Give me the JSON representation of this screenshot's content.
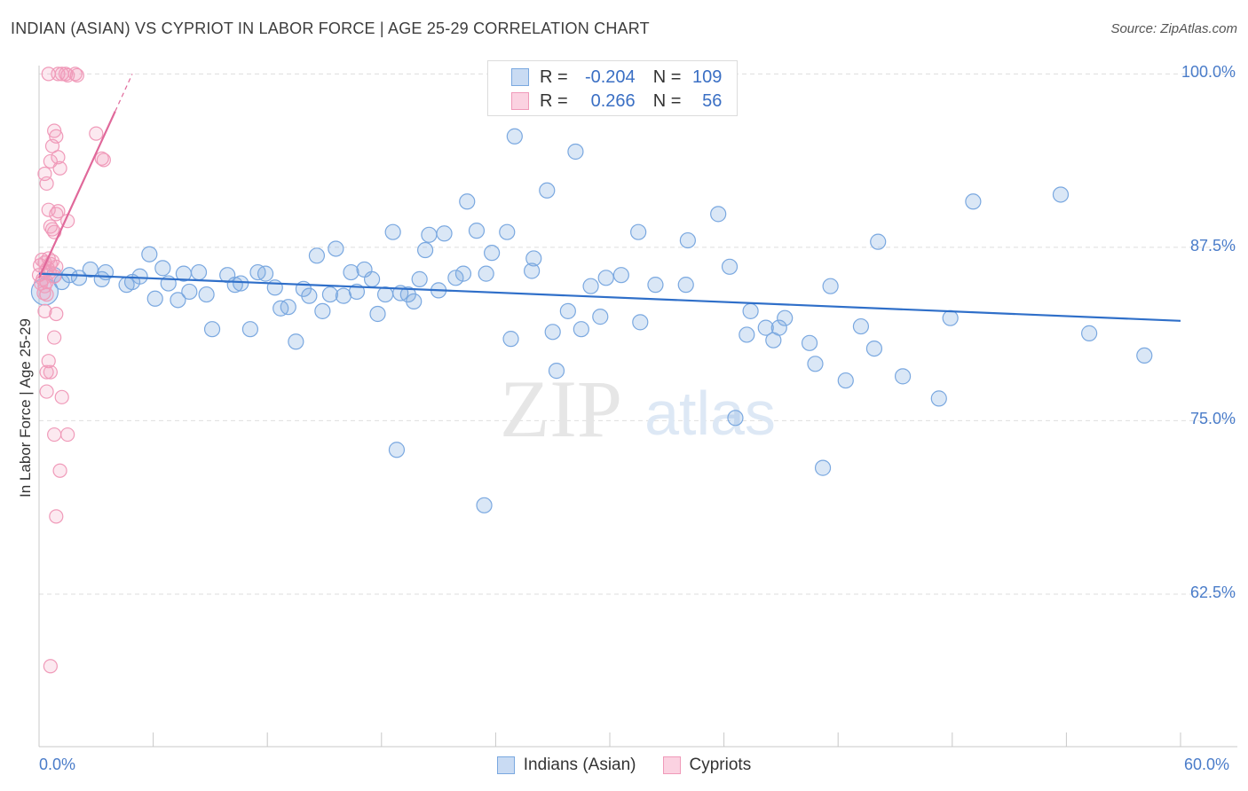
{
  "chart_data": {
    "type": "scatter",
    "title": "INDIAN (ASIAN) VS CYPRIOT IN LABOR FORCE | AGE 25-29 CORRELATION CHART",
    "source": "Source: ZipAtlas.com",
    "ylabel": "In Labor Force | Age 25-29",
    "xlabel": "",
    "xlim": [
      0,
      60
    ],
    "ylim": [
      51.5,
      100.6
    ],
    "x_tick_labels": [
      "0.0%",
      "60.0%"
    ],
    "y_ticks": [
      {
        "value": 100.0,
        "label": "100.0%"
      },
      {
        "value": 87.5,
        "label": "87.5%"
      },
      {
        "value": 75.0,
        "label": "75.0%"
      },
      {
        "value": 62.5,
        "label": "62.5%"
      }
    ],
    "watermark": {
      "zip": "ZIP",
      "atlas": "atlas"
    },
    "legend": [
      {
        "r_label": "R =",
        "r": "-0.204",
        "n_label": "N =",
        "n": "109",
        "color": "#7aa8e0"
      },
      {
        "r_label": "R =",
        "r": "0.266",
        "n_label": "N =",
        "n": "56",
        "color": "#f09ab9"
      }
    ],
    "series": [
      {
        "name": "Indians (Asian)",
        "color": "#7aa8e0",
        "trend": {
          "x": [
            0,
            60
          ],
          "y": [
            85.6,
            82.2
          ],
          "color": "#2f6fc9"
        },
        "points": [
          [
            0.3,
            84.3
          ],
          [
            0.8,
            85.5
          ],
          [
            1.2,
            85.0
          ],
          [
            1.6,
            85.5
          ],
          [
            2.1,
            85.3
          ],
          [
            2.7,
            85.9
          ],
          [
            3.3,
            85.2
          ],
          [
            3.5,
            85.7
          ],
          [
            4.6,
            84.8
          ],
          [
            4.9,
            85.0
          ],
          [
            5.3,
            85.4
          ],
          [
            5.8,
            87.0
          ],
          [
            6.1,
            83.8
          ],
          [
            6.5,
            86.0
          ],
          [
            6.8,
            84.9
          ],
          [
            7.3,
            83.7
          ],
          [
            7.6,
            85.6
          ],
          [
            7.9,
            84.3
          ],
          [
            8.4,
            85.7
          ],
          [
            8.8,
            84.1
          ],
          [
            9.1,
            81.6
          ],
          [
            9.9,
            85.5
          ],
          [
            10.3,
            84.8
          ],
          [
            10.6,
            84.9
          ],
          [
            11.1,
            81.6
          ],
          [
            11.5,
            85.7
          ],
          [
            11.9,
            85.6
          ],
          [
            12.4,
            84.6
          ],
          [
            12.7,
            83.1
          ],
          [
            13.1,
            83.2
          ],
          [
            13.5,
            80.7
          ],
          [
            13.9,
            84.5
          ],
          [
            14.2,
            84.0
          ],
          [
            14.6,
            86.9
          ],
          [
            14.9,
            82.9
          ],
          [
            15.3,
            84.1
          ],
          [
            15.6,
            87.4
          ],
          [
            16.0,
            84.0
          ],
          [
            16.4,
            85.7
          ],
          [
            16.7,
            84.3
          ],
          [
            17.1,
            85.9
          ],
          [
            17.5,
            85.2
          ],
          [
            17.8,
            82.7
          ],
          [
            18.2,
            84.1
          ],
          [
            18.6,
            88.6
          ],
          [
            19.0,
            84.2
          ],
          [
            19.4,
            84.1
          ],
          [
            19.7,
            83.6
          ],
          [
            20.0,
            85.2
          ],
          [
            20.3,
            87.3
          ],
          [
            20.5,
            88.4
          ],
          [
            21.0,
            84.4
          ],
          [
            21.3,
            88.5
          ],
          [
            21.9,
            85.3
          ],
          [
            22.3,
            85.6
          ],
          [
            22.5,
            90.8
          ],
          [
            23.0,
            88.7
          ],
          [
            23.5,
            85.6
          ],
          [
            23.8,
            87.1
          ],
          [
            24.6,
            88.6
          ],
          [
            24.8,
            80.9
          ],
          [
            25.0,
            95.5
          ],
          [
            25.9,
            85.8
          ],
          [
            26.0,
            86.7
          ],
          [
            26.7,
            91.6
          ],
          [
            27.0,
            81.4
          ],
          [
            27.2,
            78.6
          ],
          [
            27.8,
            82.9
          ],
          [
            28.2,
            94.4
          ],
          [
            28.5,
            81.6
          ],
          [
            29.0,
            84.7
          ],
          [
            29.5,
            82.5
          ],
          [
            29.8,
            85.3
          ],
          [
            30.6,
            85.5
          ],
          [
            31.5,
            88.6
          ],
          [
            31.6,
            82.1
          ],
          [
            32.4,
            84.8
          ],
          [
            34.0,
            84.8
          ],
          [
            34.1,
            88.0
          ],
          [
            35.7,
            89.9
          ],
          [
            36.3,
            86.1
          ],
          [
            36.6,
            75.2
          ],
          [
            37.2,
            81.2
          ],
          [
            37.4,
            82.9
          ],
          [
            38.2,
            81.7
          ],
          [
            38.6,
            80.8
          ],
          [
            38.9,
            81.7
          ],
          [
            39.2,
            82.4
          ],
          [
            40.5,
            80.6
          ],
          [
            40.8,
            79.1
          ],
          [
            41.2,
            71.6
          ],
          [
            41.6,
            84.7
          ],
          [
            42.4,
            77.9
          ],
          [
            43.2,
            81.8
          ],
          [
            43.9,
            80.2
          ],
          [
            44.1,
            87.9
          ],
          [
            45.4,
            78.2
          ],
          [
            47.3,
            76.6
          ],
          [
            47.9,
            82.4
          ],
          [
            49.1,
            90.8
          ],
          [
            53.7,
            91.3
          ],
          [
            55.2,
            81.3
          ],
          [
            58.1,
            79.7
          ],
          [
            18.8,
            72.9
          ],
          [
            23.4,
            68.9
          ]
        ]
      },
      {
        "name": "Cypriots",
        "color": "#f09ab9",
        "trend": {
          "x": [
            0,
            4.0
          ],
          "y": [
            85.3,
            97.3
          ],
          "color": "#e0689a"
        },
        "points": [
          [
            0.0,
            85.5
          ],
          [
            0.05,
            86.2
          ],
          [
            0.1,
            84.9
          ],
          [
            0.15,
            86.6
          ],
          [
            0.2,
            85.2
          ],
          [
            0.25,
            84.2
          ],
          [
            0.3,
            86.4
          ],
          [
            0.35,
            85.8
          ],
          [
            0.4,
            85.0
          ],
          [
            0.45,
            86.0
          ],
          [
            0.5,
            86.7
          ],
          [
            0.55,
            85.7
          ],
          [
            0.6,
            86.3
          ],
          [
            0.7,
            86.5
          ],
          [
            0.8,
            85.4
          ],
          [
            0.9,
            86.1
          ],
          [
            0.3,
            92.8
          ],
          [
            0.4,
            92.1
          ],
          [
            0.5,
            90.2
          ],
          [
            0.6,
            89.0
          ],
          [
            0.7,
            88.8
          ],
          [
            0.8,
            88.6
          ],
          [
            0.9,
            89.9
          ],
          [
            1.0,
            90.1
          ],
          [
            0.6,
            93.7
          ],
          [
            0.7,
            94.8
          ],
          [
            0.8,
            95.9
          ],
          [
            0.9,
            95.5
          ],
          [
            1.0,
            94.0
          ],
          [
            1.1,
            93.2
          ],
          [
            0.5,
            100.0
          ],
          [
            1.0,
            100.0
          ],
          [
            1.2,
            100.0
          ],
          [
            1.4,
            100.0
          ],
          [
            1.5,
            99.9
          ],
          [
            1.9,
            100.0
          ],
          [
            2.0,
            99.9
          ],
          [
            3.0,
            95.7
          ],
          [
            3.3,
            93.9
          ],
          [
            3.4,
            93.8
          ],
          [
            1.5,
            89.4
          ],
          [
            0.3,
            84.7
          ],
          [
            0.4,
            84.1
          ],
          [
            0.9,
            82.7
          ],
          [
            0.8,
            81.0
          ],
          [
            0.5,
            79.3
          ],
          [
            0.4,
            78.5
          ],
          [
            0.6,
            78.5
          ],
          [
            0.4,
            77.1
          ],
          [
            1.2,
            76.7
          ],
          [
            0.8,
            74.0
          ],
          [
            1.5,
            74.0
          ],
          [
            1.1,
            71.4
          ],
          [
            0.9,
            68.1
          ],
          [
            0.6,
            57.3
          ],
          [
            0.3,
            82.9
          ]
        ]
      }
    ]
  }
}
